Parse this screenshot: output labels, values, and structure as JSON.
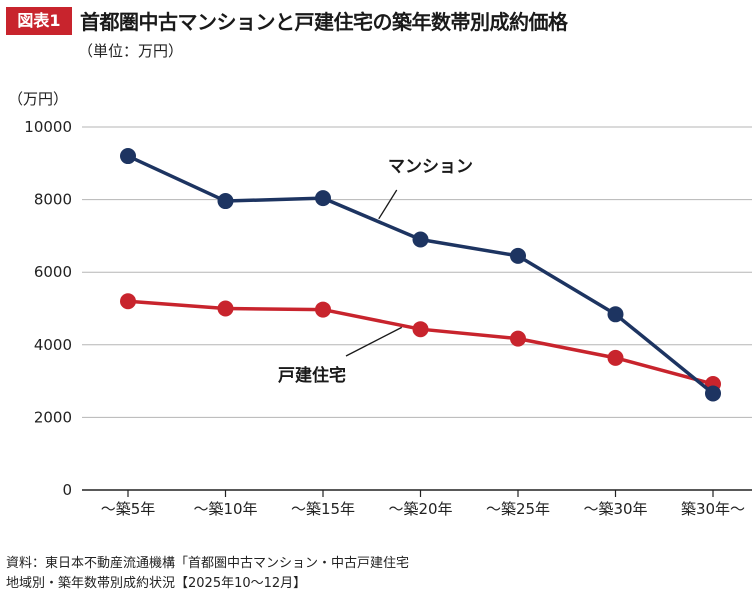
{
  "header": {
    "badge": "図表1",
    "title": "首都圏中古マンションと戸建住宅の築年数帯別成約価格",
    "subtitle": "（単位：万円）"
  },
  "chart_data": {
    "type": "line",
    "ylabel": "（万円）",
    "ylim": [
      0,
      10000
    ],
    "yticks": [
      0,
      2000,
      4000,
      6000,
      8000,
      10000
    ],
    "grid": true,
    "categories": [
      "～築5年",
      "～築10年",
      "～築15年",
      "～築20年",
      "～築25年",
      "～築30年",
      "築30年～"
    ],
    "series": [
      {
        "name": "マンション",
        "color": "#1d3461",
        "values": [
          9200,
          7960,
          8040,
          6900,
          6450,
          4840,
          2660
        ]
      },
      {
        "name": "戸建住宅",
        "color": "#c8242d",
        "values": [
          5200,
          5000,
          4970,
          4430,
          4170,
          3640,
          2920
        ]
      }
    ]
  },
  "source": {
    "line1": "資料：東日本不動産流通機構「首都圏中古マンション・中古戸建住宅",
    "line2": "地域別・築年数帯別成約状況【2025年10～12月】"
  }
}
